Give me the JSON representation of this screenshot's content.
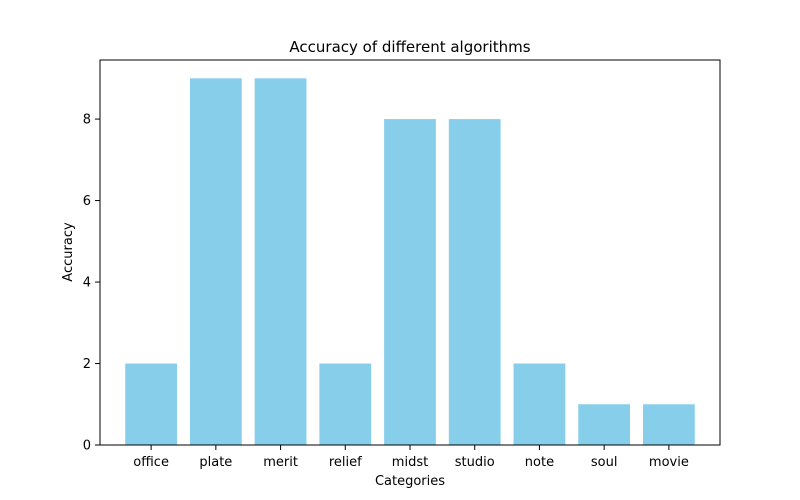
{
  "chart_data": {
    "type": "bar",
    "title": "Accuracy of different algorithms",
    "xlabel": "Categories",
    "ylabel": "Accuracy",
    "categories": [
      "office",
      "plate",
      "merit",
      "relief",
      "midst",
      "studio",
      "note",
      "soul",
      "movie"
    ],
    "values": [
      2,
      9,
      9,
      2,
      8,
      8,
      2,
      1,
      1
    ],
    "yticks": [
      0,
      2,
      4,
      6,
      8
    ],
    "ylim": [
      0,
      9.45
    ],
    "grid": false,
    "bar_color": "#87ceeb",
    "axis_color": "#000000"
  }
}
